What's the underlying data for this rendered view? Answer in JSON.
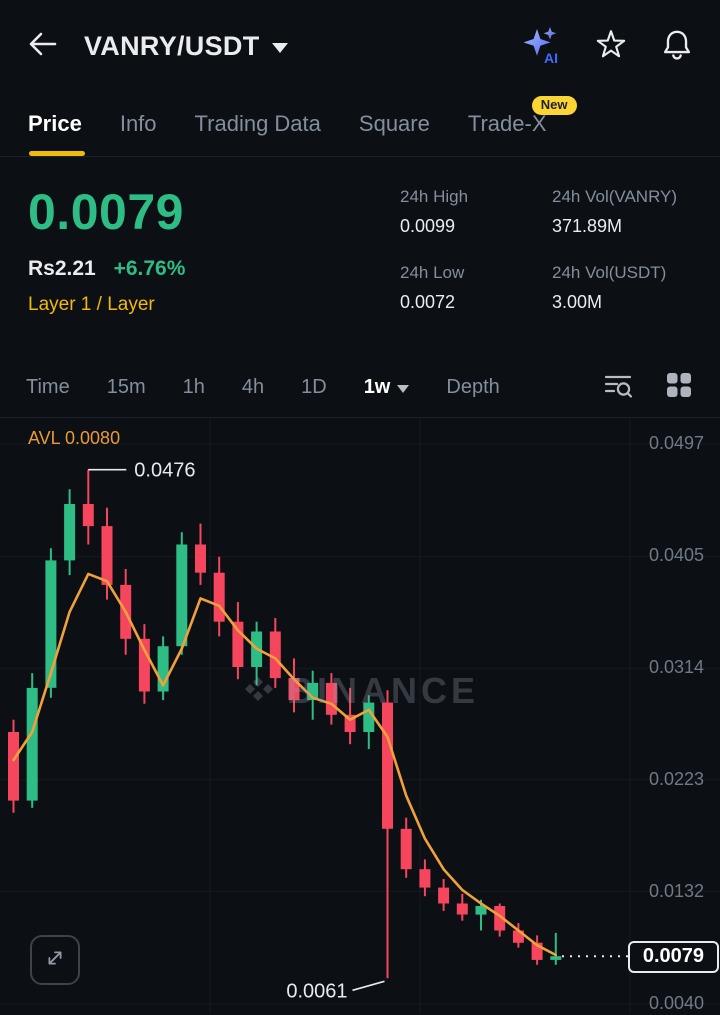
{
  "header": {
    "title": "VANRY/USDT",
    "ai_label": "AI"
  },
  "tabs": {
    "items": [
      {
        "label": "Price",
        "active": true
      },
      {
        "label": "Info"
      },
      {
        "label": "Trading Data"
      },
      {
        "label": "Square"
      },
      {
        "label": "Trade-X",
        "badge": "New"
      }
    ]
  },
  "price_panel": {
    "last_price": "0.0079",
    "fiat_value": "Rs2.21",
    "change": "+6.76%",
    "tags": "Layer 1 / Layer",
    "stats": [
      {
        "label": "24h High",
        "value": "0.0099"
      },
      {
        "label": "24h Vol(VANRY)",
        "value": "371.89M"
      },
      {
        "label": "24h Low",
        "value": "0.0072"
      },
      {
        "label": "24h Vol(USDT)",
        "value": "3.00M"
      }
    ]
  },
  "interval_bar": {
    "items": [
      "Time",
      "15m",
      "1h",
      "4h",
      "1D",
      "1w",
      "Depth"
    ],
    "selected": "1w"
  },
  "chart": {
    "indicator_label": "AVL 0.0080",
    "watermark": "BINANCE",
    "y_axis_labels": [
      "0.0497",
      "0.0405",
      "0.0314",
      "0.0223",
      "0.0132",
      "0.0040"
    ],
    "last_price_label": "0.0079"
  },
  "chart_data": {
    "type": "candlestick",
    "title": "VANRY/USDT 1w",
    "interval": "1w",
    "colors": {
      "up": "#2EBD85",
      "down": "#F6465D",
      "ma": "#F0A13A"
    },
    "y_axis": {
      "min": 0.004,
      "max": 0.0497,
      "ticks": [
        0.0497,
        0.0405,
        0.0314,
        0.0223,
        0.0132,
        0.004
      ]
    },
    "candles": [
      [
        0.0262,
        0.0272,
        0.0196,
        0.0206
      ],
      [
        0.0206,
        0.031,
        0.02,
        0.0298
      ],
      [
        0.0298,
        0.0412,
        0.029,
        0.0402
      ],
      [
        0.0402,
        0.046,
        0.039,
        0.0448
      ],
      [
        0.0448,
        0.0476,
        0.0415,
        0.043
      ],
      [
        0.043,
        0.0445,
        0.037,
        0.0382
      ],
      [
        0.0382,
        0.0395,
        0.0325,
        0.0338
      ],
      [
        0.0338,
        0.035,
        0.0285,
        0.0295
      ],
      [
        0.0295,
        0.034,
        0.0288,
        0.0332
      ],
      [
        0.0332,
        0.0425,
        0.0325,
        0.0415
      ],
      [
        0.0415,
        0.0432,
        0.0382,
        0.0392
      ],
      [
        0.0392,
        0.0405,
        0.034,
        0.0352
      ],
      [
        0.0352,
        0.0368,
        0.0305,
        0.0315
      ],
      [
        0.0315,
        0.0352,
        0.03,
        0.0344
      ],
      [
        0.0344,
        0.0355,
        0.0298,
        0.0306
      ],
      [
        0.0306,
        0.0322,
        0.0278,
        0.0288
      ],
      [
        0.0288,
        0.0312,
        0.0272,
        0.0302
      ],
      [
        0.0302,
        0.031,
        0.0268,
        0.0276
      ],
      [
        0.0276,
        0.0298,
        0.0252,
        0.0262
      ],
      [
        0.0262,
        0.0292,
        0.0248,
        0.0286
      ],
      [
        0.0286,
        0.0296,
        0.0061,
        0.0183
      ],
      [
        0.0183,
        0.0192,
        0.0143,
        0.015
      ],
      [
        0.015,
        0.0158,
        0.0128,
        0.0135
      ],
      [
        0.0135,
        0.0142,
        0.0116,
        0.0122
      ],
      [
        0.0122,
        0.013,
        0.0108,
        0.0113
      ],
      [
        0.0113,
        0.0125,
        0.01,
        0.012
      ],
      [
        0.012,
        0.0122,
        0.0095,
        0.01
      ],
      [
        0.01,
        0.0106,
        0.0086,
        0.009
      ],
      [
        0.009,
        0.0096,
        0.0072,
        0.0076
      ],
      [
        0.0076,
        0.0098,
        0.0072,
        0.0079
      ]
    ],
    "ma_series": {
      "name": "AVL",
      "current": 0.008,
      "values": [
        0.0239,
        0.0262,
        0.031,
        0.036,
        0.0391,
        0.0385,
        0.036,
        0.0329,
        0.03,
        0.033,
        0.0371,
        0.0365,
        0.0345,
        0.033,
        0.0322,
        0.0305,
        0.029,
        0.0285,
        0.0272,
        0.028,
        0.0258,
        0.021,
        0.0175,
        0.015,
        0.0133,
        0.0122,
        0.0112,
        0.01,
        0.0088,
        0.008
      ]
    },
    "annotations": {
      "high": {
        "index": 4,
        "value": 0.0476,
        "label": "0.0476"
      },
      "low": {
        "index": 20,
        "value": 0.0061,
        "label": "0.0061"
      },
      "last": {
        "value": 0.0079,
        "label": "0.0079"
      }
    }
  }
}
